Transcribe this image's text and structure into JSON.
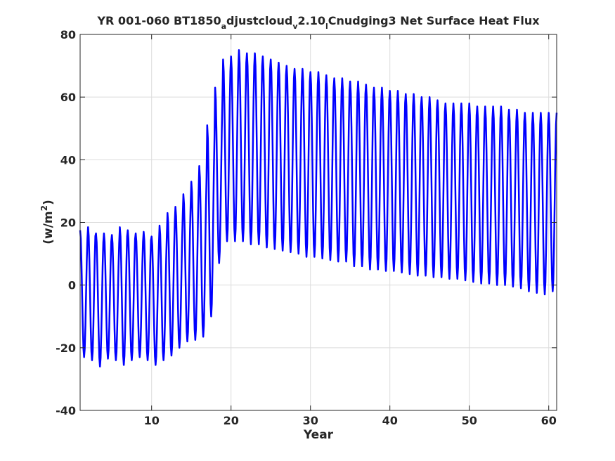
{
  "chart_data": {
    "type": "line",
    "title": {
      "parts": [
        {
          "text": "YR 001-060 BT1850",
          "sub": false
        },
        {
          "text": "a",
          "sub": true
        },
        {
          "text": "djustcloud",
          "sub": false
        },
        {
          "text": "v",
          "sub": true
        },
        {
          "text": "2.10",
          "sub": false
        },
        {
          "text": "l",
          "sub": true
        },
        {
          "text": "Cnudging3 Net Surface Heat Flux",
          "sub": false
        }
      ]
    },
    "xlabel": "Year",
    "ylabel": "(w/m",
    "ylabel_sup": "2",
    "ylabel_close": ")",
    "xlim": [
      1,
      61
    ],
    "ylim": [
      -40,
      80
    ],
    "xticks": [
      10,
      20,
      30,
      40,
      50,
      60
    ],
    "yticks": [
      -40,
      -20,
      0,
      20,
      40,
      60,
      80
    ],
    "grid": true,
    "line_color": "#0000ff",
    "series": [
      {
        "cycle_start_year": 1,
        "samples_per_year": 12,
        "annual_max": [
          17.5,
          18.5,
          16.5,
          16.5,
          16,
          18.5,
          17.5,
          16.5,
          17,
          15.5,
          19,
          23,
          25,
          29,
          33,
          38,
          51,
          63,
          72,
          73,
          75,
          74,
          74,
          73,
          72,
          71,
          70,
          69,
          69,
          68,
          68,
          67,
          66,
          66,
          65,
          65,
          64,
          63,
          63,
          62,
          62,
          61,
          61,
          60,
          60,
          59,
          58,
          58,
          58,
          58,
          57,
          57,
          57,
          57,
          56,
          56,
          55,
          55,
          55,
          55
        ],
        "annual_min": [
          -23,
          -24,
          -26,
          -23.5,
          -24,
          -25.5,
          -24,
          -23,
          -24,
          -25.5,
          -24,
          -22.5,
          -20,
          -18,
          -17.5,
          -16.5,
          -10,
          7,
          14,
          14,
          14,
          13,
          13,
          12,
          11.5,
          11,
          10.5,
          10,
          9,
          9,
          8.5,
          8,
          7.5,
          7.5,
          6,
          6,
          5,
          5,
          4.5,
          4.5,
          4,
          3.5,
          3,
          3,
          2.5,
          2.5,
          2,
          2,
          1.5,
          1,
          0.5,
          0.5,
          0,
          0,
          -0.5,
          -1,
          -2,
          -2.5,
          -3,
          -2
        ]
      }
    ]
  }
}
